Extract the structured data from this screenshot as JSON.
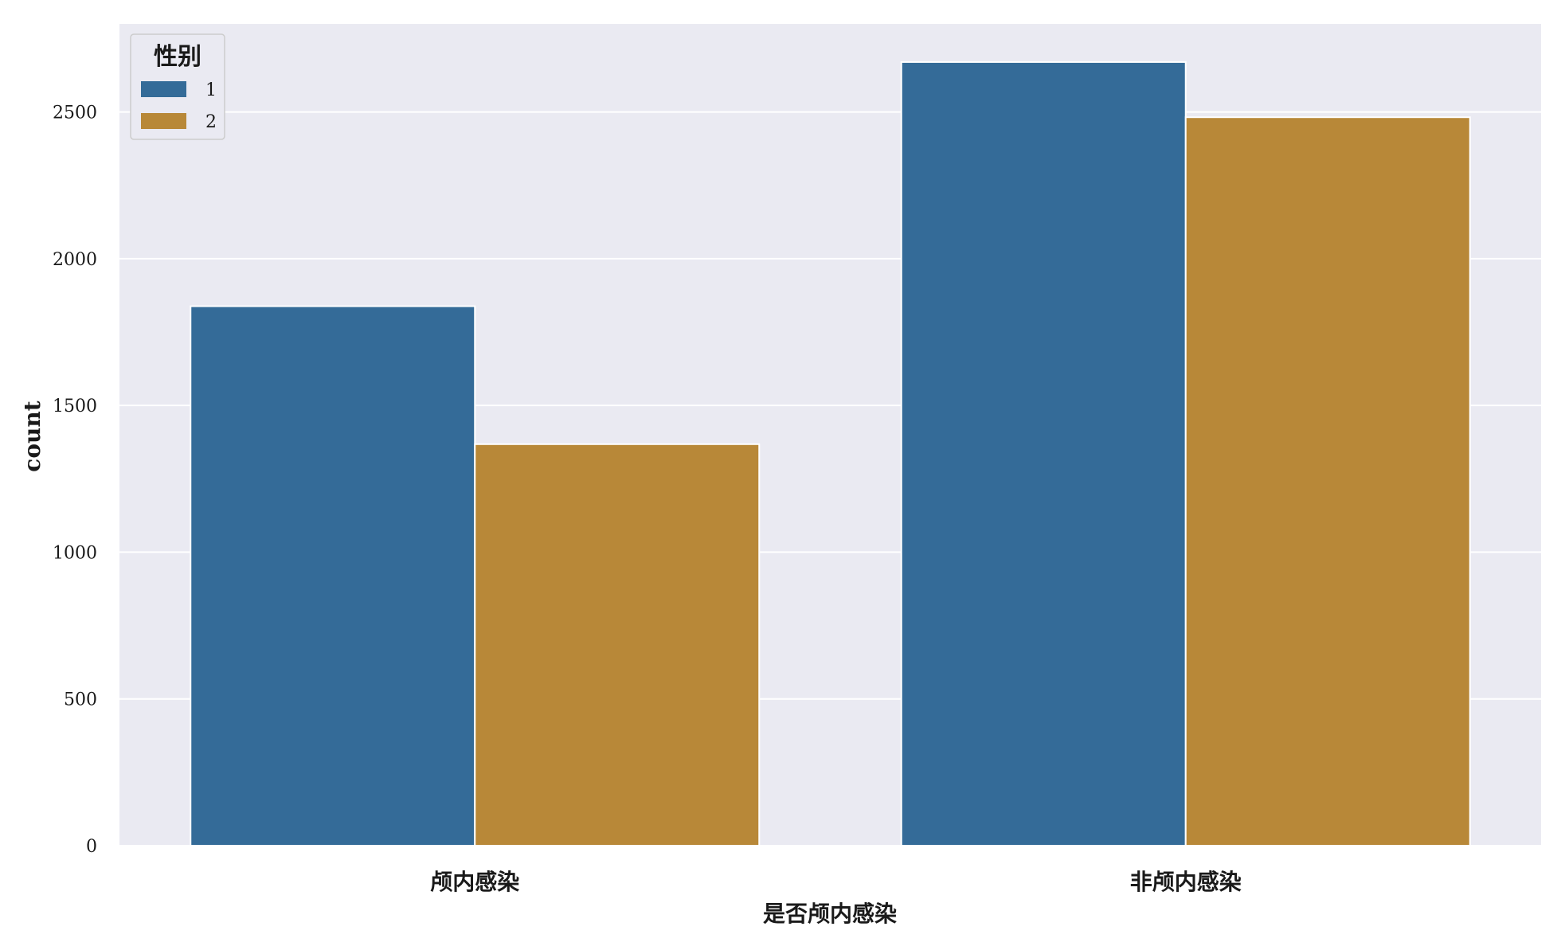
{
  "chart_data": {
    "type": "bar",
    "title": "",
    "xlabel": "是否颅内感染",
    "ylabel": "count",
    "categories": [
      "颅内感染",
      "非颅内感染"
    ],
    "series": [
      {
        "name": "1",
        "values": [
          1838,
          2670
        ],
        "color": "#346b98"
      },
      {
        "name": "2",
        "values": [
          1368,
          2482
        ],
        "color": "#b88838"
      }
    ],
    "ylim": [
      0,
      2800
    ],
    "yticks": [
      0,
      500,
      1000,
      1500,
      2000,
      2500
    ],
    "legend": {
      "title": "性别",
      "placement": "top-left"
    },
    "grid": true,
    "background": "#eaeaf2",
    "grid_color": "#ffffff"
  }
}
